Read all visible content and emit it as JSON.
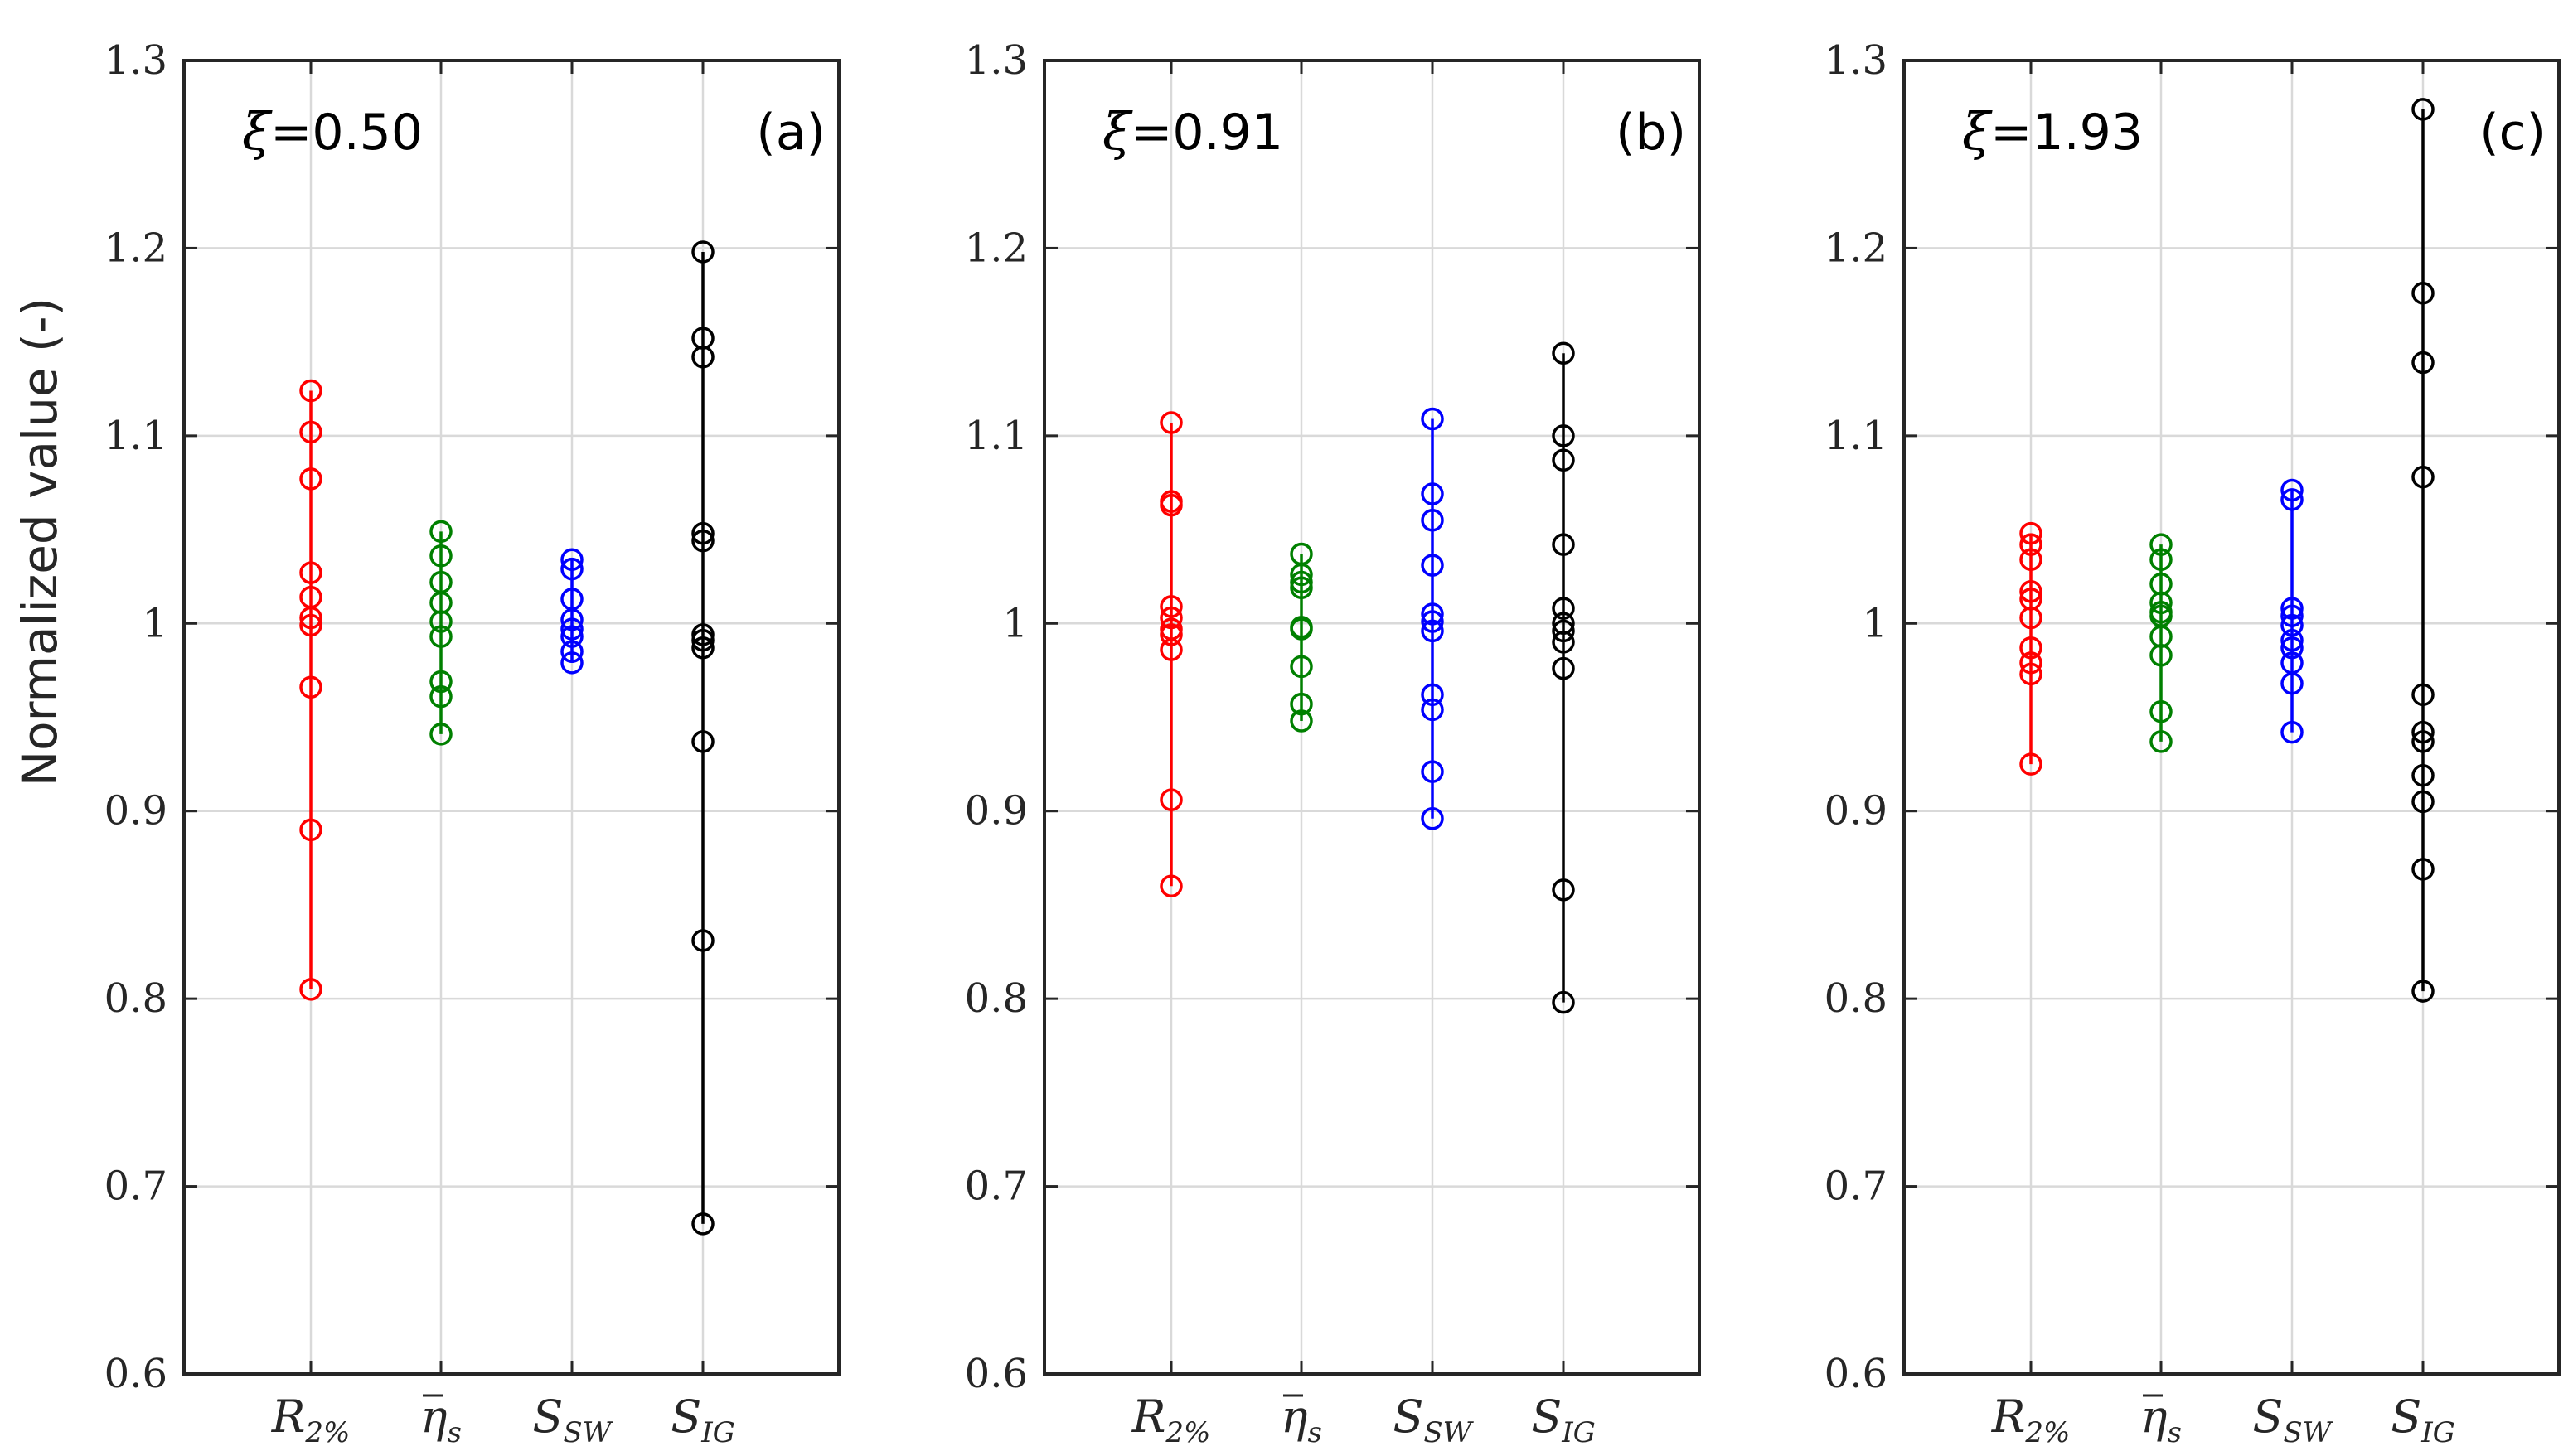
{
  "chart_data": {
    "type": "scatter",
    "ylabel": "Normalized value (-)",
    "ylim": [
      0.6,
      1.3
    ],
    "yticks": [
      "0.6",
      "0.7",
      "0.8",
      "0.9",
      "1",
      "1.1",
      "1.2",
      "1.3"
    ],
    "grid": true,
    "categories": [
      {
        "base": "R",
        "sub": "2%",
        "bar": false,
        "color": "#ff0000"
      },
      {
        "base": "η",
        "sub": "s",
        "bar": true,
        "color": "#008000"
      },
      {
        "base": "S",
        "sub": "SW",
        "bar": false,
        "color": "#0000ff"
      },
      {
        "base": "S",
        "sub": "IG",
        "bar": false,
        "color": "#000000"
      }
    ],
    "panels": [
      {
        "label": "(a)",
        "xi_symbol": "ξ",
        "xi_value": "=0.50",
        "series": [
          {
            "name": "R2%",
            "values": [
              1.124,
              1.102,
              1.077,
              1.027,
              1.014,
              1.003,
              0.999,
              0.966,
              0.89,
              0.805
            ]
          },
          {
            "name": "eta_s",
            "values": [
              1.049,
              1.036,
              1.022,
              1.011,
              1.001,
              0.993,
              0.969,
              0.961,
              0.941
            ]
          },
          {
            "name": "S_SW",
            "values": [
              1.034,
              1.029,
              1.013,
              1.002,
              0.997,
              0.993,
              0.985,
              0.979
            ]
          },
          {
            "name": "S_IG",
            "values": [
              1.198,
              1.152,
              1.142,
              1.048,
              1.044,
              0.994,
              0.991,
              0.987,
              0.937,
              0.831,
              0.68
            ]
          }
        ]
      },
      {
        "label": "(b)",
        "xi_symbol": "ξ",
        "xi_value": "=0.91",
        "series": [
          {
            "name": "R2%",
            "values": [
              1.107,
              1.065,
              1.063,
              1.009,
              1.003,
              0.997,
              0.994,
              0.986,
              0.906,
              0.86
            ]
          },
          {
            "name": "eta_s",
            "values": [
              1.037,
              1.026,
              1.022,
              1.019,
              0.998,
              0.997,
              0.977,
              0.957,
              0.948
            ]
          },
          {
            "name": "S_SW",
            "values": [
              1.109,
              1.069,
              1.055,
              1.031,
              1.005,
              1.001,
              0.996,
              0.962,
              0.954,
              0.921,
              0.896
            ]
          },
          {
            "name": "S_IG",
            "values": [
              1.144,
              1.1,
              1.087,
              1.042,
              1.008,
              1.0,
              0.996,
              0.99,
              0.976,
              0.858,
              0.798
            ]
          }
        ]
      },
      {
        "label": "(c)",
        "xi_symbol": "ξ",
        "xi_value": "=1.93",
        "series": [
          {
            "name": "R2%",
            "values": [
              1.048,
              1.042,
              1.034,
              1.017,
              1.013,
              1.003,
              0.987,
              0.979,
              0.973,
              0.925
            ]
          },
          {
            "name": "eta_s",
            "values": [
              1.042,
              1.034,
              1.021,
              1.011,
              1.006,
              1.004,
              0.993,
              0.983,
              0.953,
              0.937
            ]
          },
          {
            "name": "S_SW",
            "values": [
              1.071,
              1.066,
              1.008,
              1.004,
              0.999,
              0.991,
              0.987,
              0.979,
              0.968,
              0.942
            ]
          },
          {
            "name": "S_IG",
            "values": [
              1.274,
              1.176,
              1.139,
              1.078,
              0.962,
              0.942,
              0.937,
              0.919,
              0.905,
              0.869,
              0.804
            ]
          }
        ]
      }
    ]
  }
}
